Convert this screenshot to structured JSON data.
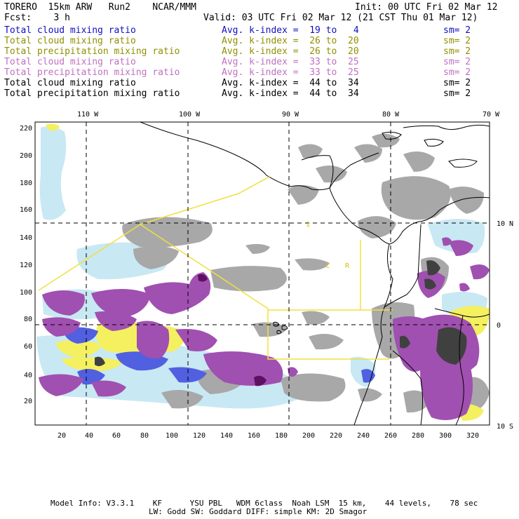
{
  "header": {
    "model_title": "TORERO  15km ARW   Run2    NCAR/MMM",
    "init": "Init: 00 UTC Fri 02 Mar 12",
    "fcst": "Fcst:    3 h",
    "valid": "Valid: 03 UTC Fri 02 Mar 12 (21 CST Thu 01 Mar 12)"
  },
  "legend": [
    {
      "name": "Total cloud mixing ratio",
      "kindex": "Avg. k-index =  19 to   4",
      "sm": "sm= 2",
      "color": "#1010c0"
    },
    {
      "name": "Total cloud mixing ratio",
      "kindex": "Avg. k-index =  26 to  20",
      "sm": "sm= 2",
      "color": "#909000"
    },
    {
      "name": "Total precipitation mixing ratio",
      "kindex": "Avg. k-index =  26 to  20",
      "sm": "sm= 2",
      "color": "#909000"
    },
    {
      "name": "Total cloud mixing ratio",
      "kindex": "Avg. k-index =  33 to  25",
      "sm": "sm= 2",
      "color": "#c070c0"
    },
    {
      "name": "Total precipitation mixing ratio",
      "kindex": "Avg. k-index =  33 to  25",
      "sm": "sm= 2",
      "color": "#c070c0"
    },
    {
      "name": "Total cloud mixing ratio",
      "kindex": "Avg. k-index =  44 to  34",
      "sm": "sm= 2",
      "color": "#000000"
    },
    {
      "name": "Total precipitation mixing ratio",
      "kindex": "Avg. k-index =  44 to  34",
      "sm": "sm= 2",
      "color": "#000000"
    }
  ],
  "map": {
    "lon_labels": [
      "110 W",
      "100 W",
      "90 W",
      "80 W",
      "70 W"
    ],
    "lat_labels": [
      "10 N",
      "0",
      "10 S"
    ],
    "x_ticks": [
      "20",
      "40",
      "60",
      "80",
      "100",
      "120",
      "140",
      "160",
      "180",
      "200",
      "220",
      "240",
      "260",
      "280",
      "300",
      "320"
    ],
    "y_ticks": [
      "20",
      "40",
      "60",
      "80",
      "100",
      "120",
      "140",
      "160",
      "180",
      "200",
      "220"
    ],
    "region_labels": [
      "1",
      "C",
      "R"
    ]
  },
  "colors": {
    "light_blue": "#c8e8f4",
    "blue": "#5060e0",
    "yellow": "#f4f060",
    "purple": "#a050b0",
    "dark_purple": "#601060",
    "gray": "#a8a8a8",
    "dark_gray": "#404040"
  },
  "footer": {
    "line1": "Model Info: V3.3.1    KF      YSU PBL   WDM 6class  Noah LSM  15 km,    44 levels,    78 sec",
    "line2": "LW: Godd SW: Goddard DIFF: simple KM: 2D Smagor"
  }
}
